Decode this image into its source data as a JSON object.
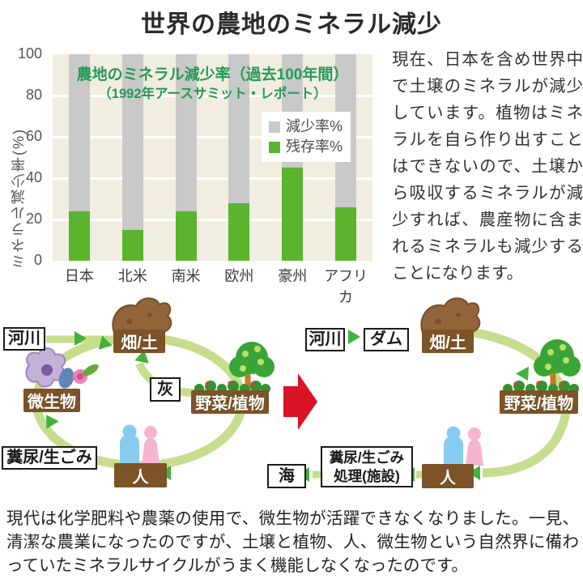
{
  "page_title": "世界の農地のミネラル減少",
  "chart_data": {
    "type": "bar",
    "stacked": true,
    "title_line1": "農地のミネラル減少率（過去100年間）",
    "title_line2": "（1992年アースサミット・レポート）",
    "ylabel": "ミネラル減少率(%)",
    "categories": [
      "日本",
      "北米",
      "南米",
      "欧州",
      "豪州",
      "アフリカ"
    ],
    "series": [
      {
        "name": "減少率%",
        "color": "#c9c9c9",
        "values": [
          76,
          85,
          76,
          72,
          55,
          74
        ]
      },
      {
        "name": "残存率%",
        "color": "#5ab42e",
        "values": [
          24,
          15,
          24,
          28,
          45,
          26
        ]
      }
    ],
    "yticks": [
      0,
      20,
      40,
      60,
      80,
      100
    ],
    "ylim": [
      0,
      100
    ],
    "legend_position": "upper-right",
    "grid": "white-horizontal",
    "plot_background": "#f2ede1"
  },
  "side_text": "現在、日本を含め世界中で土壌のミネラルが減少しています。植物はミネラルを自ら作り出すことはできないので、土壌から吸収するミネラルが減少すれば、農産物に含まれるミネラルも減少することになります。",
  "bottom_text": "現代は化学肥料や農薬の使用で、微生物が活躍できなくなりました。一見、清潔な農業になったのですが、土壌と植物、人、微生物という自然界に備わっていたミネラルサイクルがうまく機能しなくなったのです。",
  "cycle_left": {
    "river": "河川",
    "field": "畑/土",
    "microbes": "微生物",
    "ash": "灰",
    "vegetables": "野菜/植物",
    "waste": "糞尿/生ごみ",
    "people": "人"
  },
  "cycle_right": {
    "river": "河川",
    "dam": "ダム",
    "field": "畑/土",
    "vegetables": "野菜/植物",
    "people": "人",
    "waste_line1": "糞尿/生ごみ",
    "waste_line2": "処理(施設)",
    "sea": "海"
  },
  "colors": {
    "remain_green": "#5ab42e",
    "decline_gray": "#c9c9c9",
    "chart_title_green": "#259a55",
    "cycle_band_green": "#c6dd8d",
    "arrow_green": "#44b13e",
    "label_brown": "#7d5327",
    "red_arrow": "#da1225",
    "person_blue": "#87cbf0",
    "person_pink": "#f6b4d1"
  }
}
